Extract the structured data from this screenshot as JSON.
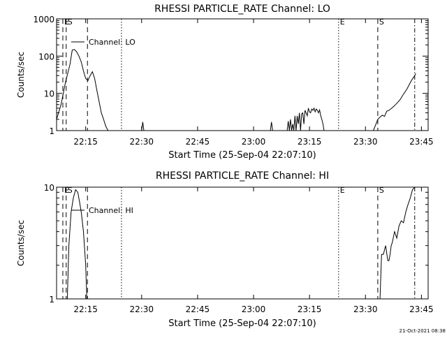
{
  "footer_timestamp": "21-Oct-2021 08:38",
  "chart_data": [
    {
      "type": "line",
      "title": "RHESSI PARTICLE_RATE Channel: LO",
      "xlabel": "Start Time (25-Sep-04 22:07:10)",
      "ylabel": "Counts/sec",
      "y_scale": "log",
      "ylim": [
        1,
        1000
      ],
      "xlim": [
        22.12,
        23.78
      ],
      "x_ticks": [
        22.25,
        22.5,
        22.75,
        23.0,
        23.25,
        23.5,
        23.75
      ],
      "x_tick_labels": [
        "22:15",
        "22:30",
        "22:45",
        "23:00",
        "23:15",
        "23:30",
        "23:45"
      ],
      "y_ticks": [
        1,
        10,
        100,
        1000
      ],
      "y_tick_labels": [
        "1",
        "10",
        "100",
        "1000"
      ],
      "legend": {
        "label": "Channel: LO",
        "placement": "top-left"
      },
      "markers": [
        {
          "x": 22.148,
          "style": "dashed",
          "label": "E"
        },
        {
          "x": 22.163,
          "style": "dashed",
          "label": "S"
        },
        {
          "x": 22.258,
          "style": "dashed",
          "label": ""
        },
        {
          "x": 22.41,
          "style": "dotted",
          "label": ""
        },
        {
          "x": 23.38,
          "style": "dotted",
          "label": "E"
        },
        {
          "x": 23.555,
          "style": "dashed",
          "label": "S"
        },
        {
          "x": 23.72,
          "style": "dashdot",
          "label": ""
        }
      ],
      "series": [
        {
          "x": [
            22.12,
            22.14,
            22.16,
            22.18,
            22.19,
            22.2,
            22.21,
            22.22,
            22.23,
            22.24,
            22.25,
            22.26,
            22.27,
            22.28,
            22.29,
            22.3,
            22.31,
            22.32,
            22.33,
            22.34,
            22.35
          ],
          "values": [
            2,
            5,
            20,
            60,
            145,
            150,
            130,
            100,
            70,
            40,
            25,
            22,
            30,
            38,
            25,
            12,
            6,
            3,
            2,
            1.3,
            1
          ]
        },
        {
          "x": [
            22.5,
            22.505,
            22.51
          ],
          "values": [
            1,
            1.7,
            1
          ]
        },
        {
          "x": [
            23.075,
            23.08,
            23.085
          ],
          "values": [
            1,
            1.7,
            1
          ]
        },
        {
          "x": [
            23.15,
            23.155,
            23.16,
            23.165,
            23.17,
            23.175,
            23.18,
            23.185,
            23.19,
            23.195,
            23.2,
            23.205,
            23.21,
            23.215,
            23.22,
            23.225,
            23.23,
            23.235,
            23.24,
            23.245,
            23.25,
            23.255,
            23.26,
            23.265,
            23.27,
            23.275,
            23.28,
            23.285,
            23.29,
            23.295,
            23.3,
            23.305,
            23.31,
            23.315
          ],
          "values": [
            1,
            1.8,
            1,
            2.0,
            1,
            1.5,
            1,
            2.5,
            1,
            2.5,
            1.5,
            3,
            1,
            2.8,
            3,
            1.5,
            3.5,
            3,
            2.5,
            4,
            3.2,
            3,
            3.8,
            3.5,
            4,
            3.2,
            3.8,
            3.5,
            3,
            3.6,
            2.5,
            2,
            1.5,
            1
          ]
        },
        {
          "x": [
            23.535,
            23.545,
            23.555,
            23.565,
            23.575,
            23.585,
            23.595,
            23.605,
            23.615,
            23.625,
            23.635,
            23.645,
            23.655,
            23.665,
            23.675,
            23.685,
            23.695,
            23.705,
            23.715,
            23.725
          ],
          "values": [
            1,
            1.4,
            2,
            2.3,
            2.6,
            2.4,
            3.3,
            3.5,
            3.9,
            4.4,
            5,
            5.8,
            6.8,
            8.5,
            10.5,
            13,
            17,
            22,
            27,
            34
          ]
        }
      ]
    },
    {
      "type": "line",
      "title": "RHESSI PARTICLE_RATE Channel: HI",
      "xlabel": "Start Time (25-Sep-04 22:07:10)",
      "ylabel": "Counts/sec",
      "y_scale": "log",
      "ylim": [
        1,
        10
      ],
      "xlim": [
        22.12,
        23.78
      ],
      "x_ticks": [
        22.25,
        22.5,
        22.75,
        23.0,
        23.25,
        23.5,
        23.75
      ],
      "x_tick_labels": [
        "22:15",
        "22:30",
        "22:45",
        "23:00",
        "23:15",
        "23:30",
        "23:45"
      ],
      "y_ticks": [
        1,
        10
      ],
      "y_tick_labels": [
        "1",
        "10"
      ],
      "legend": {
        "label": "Channel: HI",
        "placement": "top-left"
      },
      "markers": [
        {
          "x": 22.148,
          "style": "dashed",
          "label": "E"
        },
        {
          "x": 22.163,
          "style": "dashed",
          "label": "S"
        },
        {
          "x": 22.258,
          "style": "dashed",
          "label": ""
        },
        {
          "x": 22.41,
          "style": "dotted",
          "label": ""
        },
        {
          "x": 23.38,
          "style": "dotted",
          "label": "E"
        },
        {
          "x": 23.555,
          "style": "dashed",
          "label": "S"
        },
        {
          "x": 23.72,
          "style": "dashdot",
          "label": ""
        }
      ],
      "series": [
        {
          "x": [
            22.168,
            22.175,
            22.185,
            22.195,
            22.205,
            22.215,
            22.222,
            22.23,
            22.24,
            22.25,
            22.255
          ],
          "values": [
            1,
            3,
            6,
            8,
            9.5,
            9,
            7.5,
            6,
            4,
            2,
            1
          ]
        },
        {
          "x": [
            23.565,
            23.572,
            23.58,
            23.59,
            23.6,
            23.605,
            23.61,
            23.615,
            23.62,
            23.63,
            23.64,
            23.65,
            23.66,
            23.67,
            23.68,
            23.69,
            23.7,
            23.71,
            23.72
          ],
          "values": [
            1,
            2.5,
            2.5,
            3,
            2.2,
            2.2,
            2.5,
            3,
            3.2,
            4,
            3.5,
            4.5,
            5,
            4.8,
            6,
            7,
            8,
            9.5,
            10
          ]
        }
      ]
    }
  ]
}
